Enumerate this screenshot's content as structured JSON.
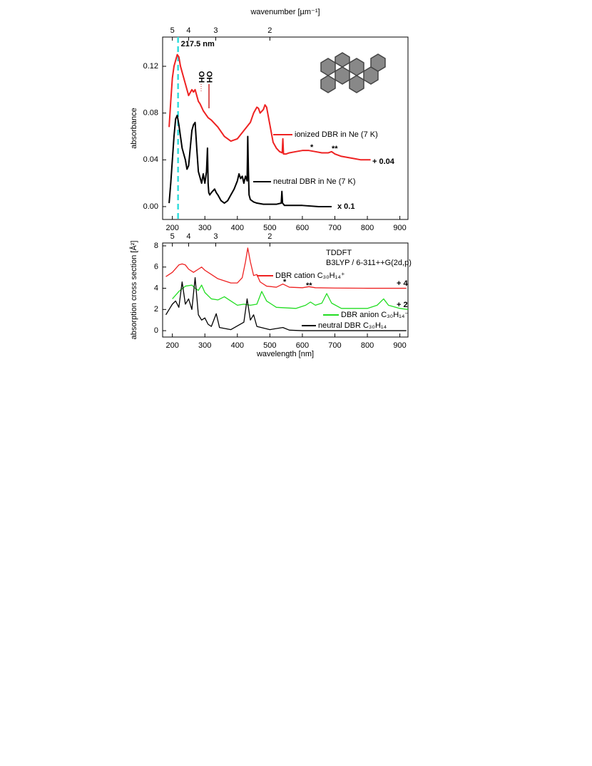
{
  "chart_data": [
    {
      "type": "line",
      "title": "wavenumber [µm⁻¹]",
      "ylabel": "absorbance",
      "xlim": [
        170,
        925
      ],
      "ylim": [
        -0.011,
        0.145
      ],
      "xticks": [
        200,
        300,
        400,
        500,
        600,
        700,
        800,
        900
      ],
      "yticks": [
        {
          "value": 0,
          "label": "0.00"
        },
        {
          "value": 0.04,
          "label": "0.04"
        },
        {
          "value": 0.08,
          "label": "0.08"
        },
        {
          "value": 0.12,
          "label": "0.12"
        }
      ],
      "x2ticks": [
        5,
        4,
        3,
        2
      ],
      "x2_scale": "reciprocal",
      "marker": {
        "value": 217.5,
        "label": "217.5 nm",
        "color": "#33dddd"
      },
      "series": [
        {
          "name": "ionized DBR in Ne (7 K)",
          "color": "#ee2222",
          "x": [
            190,
            195,
            200,
            205,
            210,
            215,
            220,
            225,
            230,
            240,
            250,
            260,
            265,
            270,
            275,
            280,
            285,
            290,
            295,
            300,
            310,
            320,
            340,
            360,
            380,
            400,
            420,
            440,
            450,
            460,
            465,
            470,
            480,
            485,
            490,
            500,
            510,
            520,
            530,
            538,
            540,
            542,
            550,
            560,
            580,
            600,
            620,
            640,
            660,
            680,
            690,
            700,
            720,
            740,
            760,
            780,
            800,
            810
          ],
          "values": [
            0.068,
            0.09,
            0.11,
            0.12,
            0.125,
            0.13,
            0.128,
            0.12,
            0.115,
            0.105,
            0.095,
            0.1,
            0.098,
            0.1,
            0.095,
            0.09,
            0.088,
            0.085,
            0.082,
            0.08,
            0.076,
            0.074,
            0.068,
            0.06,
            0.056,
            0.058,
            0.065,
            0.072,
            0.08,
            0.085,
            0.084,
            0.08,
            0.083,
            0.087,
            0.085,
            0.07,
            0.055,
            0.05,
            0.047,
            0.046,
            0.058,
            0.045,
            0.045,
            0.046,
            0.047,
            0.048,
            0.048,
            0.047,
            0.046,
            0.046,
            0.047,
            0.045,
            0.043,
            0.042,
            0.041,
            0.04,
            0.04,
            0.04
          ]
        },
        {
          "name": "neutral DBR in Ne (7 K)",
          "color": "#000000",
          "x": [
            190,
            195,
            200,
            205,
            210,
            215,
            220,
            225,
            230,
            235,
            240,
            245,
            250,
            255,
            260,
            265,
            270,
            275,
            280,
            285,
            290,
            295,
            300,
            305,
            308,
            310,
            312,
            315,
            320,
            330,
            335,
            340,
            350,
            360,
            370,
            380,
            390,
            400,
            405,
            410,
            415,
            420,
            425,
            430,
            432,
            434,
            436,
            440,
            450,
            460,
            480,
            500,
            520,
            535,
            537,
            539,
            545,
            560,
            600,
            650,
            690
          ],
          "values": [
            0.003,
            0.02,
            0.04,
            0.06,
            0.075,
            0.078,
            0.07,
            0.06,
            0.05,
            0.045,
            0.04,
            0.032,
            0.035,
            0.05,
            0.065,
            0.07,
            0.072,
            0.05,
            0.03,
            0.025,
            0.02,
            0.028,
            0.02,
            0.03,
            0.05,
            0.02,
            0.012,
            0.01,
            0.012,
            0.015,
            0.012,
            0.01,
            0.005,
            0.003,
            0.005,
            0.01,
            0.015,
            0.022,
            0.028,
            0.024,
            0.026,
            0.02,
            0.026,
            0.022,
            0.06,
            0.03,
            0.01,
            0.006,
            0.004,
            0.003,
            0.002,
            0.002,
            0.002,
            0.003,
            0.013,
            0.003,
            0.001,
            0.001,
            0.001,
            0,
            0
          ]
        }
      ],
      "annotations": [
        {
          "text": "+ 0.04",
          "color": "#ee2222"
        },
        {
          "text": "x 0.1",
          "color": "#000000"
        },
        {
          "text": "OH",
          "color": "#cc2222"
        },
        {
          "text": "OH",
          "color": "#cc2222"
        },
        {
          "text": "*",
          "color": "#ee2222"
        },
        {
          "text": "**",
          "color": "#ee2222"
        }
      ]
    },
    {
      "type": "line",
      "xlabel": "wavelength [nm]",
      "ylabel": "absorption cross section [Å²]",
      "xlim": [
        170,
        925
      ],
      "ylim": [
        -0.6,
        8.27
      ],
      "xticks": [
        200,
        300,
        400,
        500,
        600,
        700,
        800,
        900
      ],
      "yticks": [
        0,
        2,
        4,
        6,
        8
      ],
      "x2ticks": [
        5,
        4,
        3,
        2
      ],
      "x2_scale": "reciprocal",
      "series": [
        {
          "name": "DBR cation C₃₀H₁₄⁺",
          "color": "#ee2222",
          "x": [
            180,
            200,
            220,
            230,
            240,
            250,
            265,
            280,
            290,
            300,
            320,
            340,
            360,
            380,
            400,
            415,
            425,
            432,
            440,
            450,
            460,
            470,
            490,
            520,
            540,
            560,
            600,
            620,
            640,
            700,
            800,
            920
          ],
          "values": [
            5.1,
            5.5,
            6.2,
            6.3,
            6.2,
            5.8,
            5.5,
            5.8,
            6.0,
            5.7,
            5.3,
            4.9,
            4.7,
            4.5,
            4.5,
            5.0,
            6.5,
            7.8,
            6.5,
            5.2,
            5.3,
            4.6,
            4.2,
            4.1,
            4.4,
            4.1,
            4.05,
            4.15,
            4.05,
            4.02,
            4.0,
            4.0
          ]
        },
        {
          "name": "DBR anion C₃₀H₁₄⁻",
          "color": "#22dd22",
          "x": [
            200,
            220,
            240,
            260,
            270,
            280,
            290,
            300,
            320,
            340,
            360,
            380,
            400,
            420,
            440,
            460,
            475,
            490,
            520,
            580,
            610,
            625,
            640,
            660,
            675,
            690,
            720,
            800,
            830,
            850,
            865,
            900,
            925
          ],
          "values": [
            3.0,
            3.7,
            4.2,
            4.3,
            4.0,
            3.8,
            4.3,
            3.6,
            3.0,
            2.9,
            3.2,
            2.8,
            2.4,
            2.5,
            2.4,
            2.5,
            3.7,
            2.8,
            2.2,
            2.1,
            2.4,
            2.7,
            2.4,
            2.6,
            3.5,
            2.6,
            2.1,
            2.1,
            2.4,
            3.0,
            2.4,
            2.1,
            2.0
          ]
        },
        {
          "name": "neutral DBR C₃₀H₁₄",
          "color": "#000000",
          "x": [
            180,
            190,
            200,
            210,
            215,
            220,
            230,
            240,
            250,
            260,
            270,
            280,
            290,
            300,
            310,
            320,
            335,
            345,
            380,
            420,
            430,
            440,
            450,
            460,
            500,
            540,
            560,
            600,
            920
          ],
          "values": [
            1.5,
            2.0,
            2.5,
            2.8,
            2.5,
            2.2,
            4.6,
            2.5,
            3.0,
            2.0,
            5.0,
            1.5,
            1.0,
            1.2,
            0.6,
            0.4,
            1.6,
            0.3,
            0.1,
            0.8,
            3.0,
            1.0,
            1.5,
            0.4,
            0.1,
            0.3,
            0.05,
            0,
            0
          ]
        }
      ],
      "annotations": [
        {
          "text": "TDDFT",
          "color": "#000000"
        },
        {
          "text": "B3LYP / 6-311++G(2d,p)",
          "color": "#000000"
        },
        {
          "text": "+ 4",
          "color": "#ee2222"
        },
        {
          "text": "+ 2",
          "color": "#22dd22"
        },
        {
          "text": "*",
          "color": "#ee2222"
        },
        {
          "text": "**",
          "color": "#ee2222"
        }
      ]
    }
  ]
}
